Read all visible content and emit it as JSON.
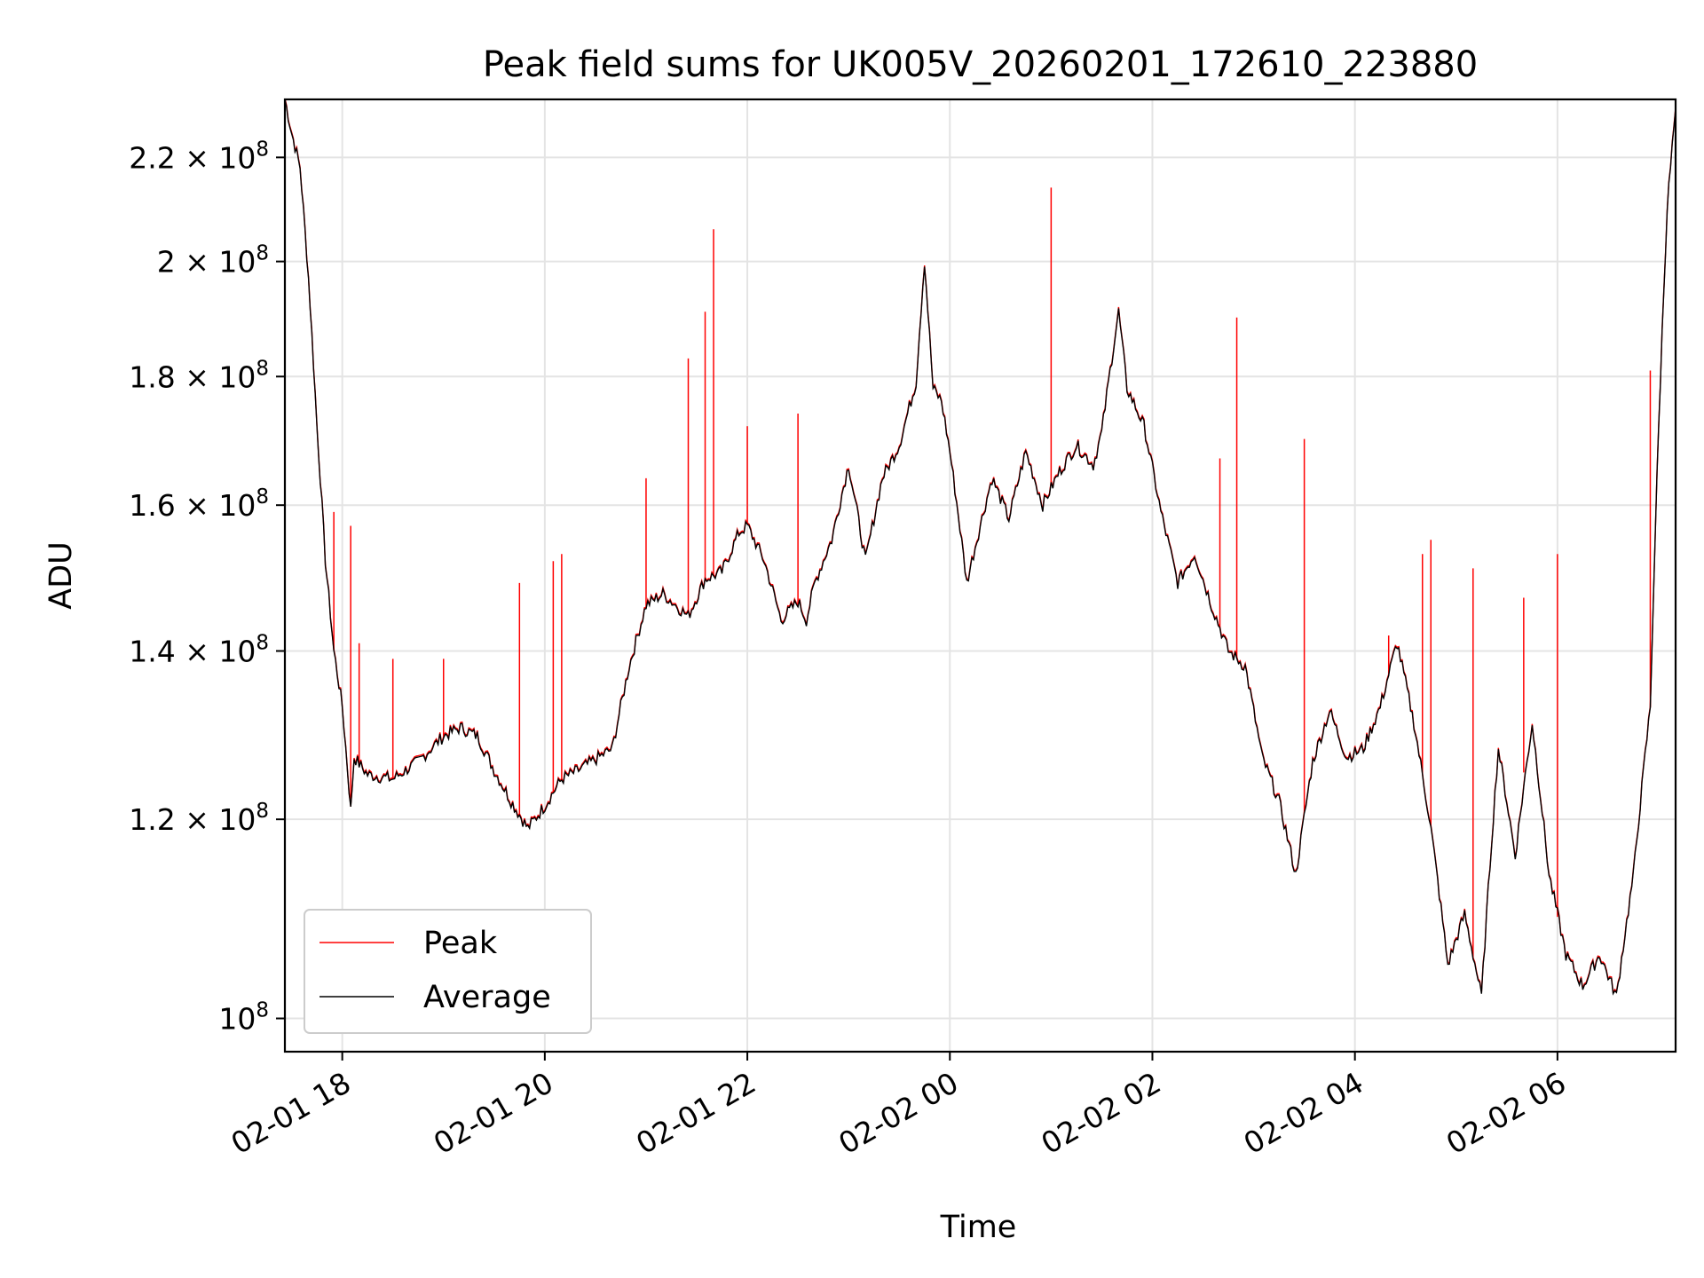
{
  "chart_data": {
    "type": "line",
    "title": "Peak field sums for UK005V_20260201_172610_223880",
    "xlabel": "Time",
    "ylabel": "ADU",
    "y_scale": "log",
    "grid": true,
    "legend_position": "lower-left",
    "xlim": [
      "2026-02-01 17:26",
      "2026-02-02 07:10"
    ],
    "ylim": [
      97000000,
      232000000
    ],
    "x_ticks": [
      "02-01 18",
      "02-01 20",
      "02-01 22",
      "02-02 00",
      "02-02 02",
      "02-02 04",
      "02-02 06"
    ],
    "y_ticks": [
      {
        "value": 100000000,
        "base": "10",
        "exp": "8",
        "mant": ""
      },
      {
        "value": 120000000,
        "base": "10",
        "exp": "8",
        "mant": "1.2"
      },
      {
        "value": 140000000,
        "base": "10",
        "exp": "8",
        "mant": "1.4"
      },
      {
        "value": 160000000,
        "base": "10",
        "exp": "8",
        "mant": "1.6"
      },
      {
        "value": 180000000,
        "base": "10",
        "exp": "8",
        "mant": "1.8"
      },
      {
        "value": 200000000,
        "base": "10",
        "exp": "8",
        "mant": "2"
      },
      {
        "value": 220000000,
        "base": "10",
        "exp": "8",
        "mant": "2.2"
      }
    ],
    "series": [
      {
        "name": "Peak",
        "color": "#ff0000"
      },
      {
        "name": "Average",
        "color": "#000000"
      }
    ],
    "average": [
      [
        "2026-02-01 17:26",
        232000000
      ],
      [
        "2026-02-01 17:30",
        225000000
      ],
      [
        "2026-02-01 17:35",
        218000000
      ],
      [
        "2026-02-01 17:40",
        197000000
      ],
      [
        "2026-02-01 17:45",
        172000000
      ],
      [
        "2026-02-01 17:50",
        152000000
      ],
      [
        "2026-02-01 17:55",
        140000000
      ],
      [
        "2026-02-01 18:00",
        133000000
      ],
      [
        "2026-02-01 18:05",
        121000000
      ],
      [
        "2026-02-01 18:07",
        127000000
      ],
      [
        "2026-02-01 18:15",
        125000000
      ],
      [
        "2026-02-01 18:30",
        124500000
      ],
      [
        "2026-02-01 18:45",
        126500000
      ],
      [
        "2026-02-01 19:00",
        129500000
      ],
      [
        "2026-02-01 19:10",
        130500000
      ],
      [
        "2026-02-01 19:20",
        129500000
      ],
      [
        "2026-02-01 19:30",
        125500000
      ],
      [
        "2026-02-01 19:40",
        122000000
      ],
      [
        "2026-02-01 19:50",
        119000000
      ],
      [
        "2026-02-01 20:00",
        121500000
      ],
      [
        "2026-02-01 20:10",
        124500000
      ],
      [
        "2026-02-01 20:20",
        125500000
      ],
      [
        "2026-02-01 20:40",
        128000000
      ],
      [
        "2026-02-01 20:50",
        138000000
      ],
      [
        "2026-02-01 21:00",
        146000000
      ],
      [
        "2026-02-01 21:10",
        147500000
      ],
      [
        "2026-02-01 21:25",
        144500000
      ],
      [
        "2026-02-01 21:35",
        149500000
      ],
      [
        "2026-02-01 21:45",
        150500000
      ],
      [
        "2026-02-01 21:55",
        156000000
      ],
      [
        "2026-02-01 22:00",
        157000000
      ],
      [
        "2026-02-01 22:10",
        152000000
      ],
      [
        "2026-02-01 22:20",
        144000000
      ],
      [
        "2026-02-01 22:30",
        146500000
      ],
      [
        "2026-02-01 22:35",
        144000000
      ],
      [
        "2026-02-01 22:40",
        149000000
      ],
      [
        "2026-02-01 22:50",
        155000000
      ],
      [
        "2026-02-01 23:00",
        166000000
      ],
      [
        "2026-02-01 23:10",
        152000000
      ],
      [
        "2026-02-01 23:20",
        164000000
      ],
      [
        "2026-02-01 23:30",
        169000000
      ],
      [
        "2026-02-01 23:40",
        179000000
      ],
      [
        "2026-02-01 23:45",
        200000000
      ],
      [
        "2026-02-01 23:50",
        178000000
      ],
      [
        "2026-02-01 23:55",
        176000000
      ],
      [
        "2026-02-02 00:00",
        168000000
      ],
      [
        "2026-02-02 00:10",
        149000000
      ],
      [
        "2026-02-02 00:20",
        159000000
      ],
      [
        "2026-02-02 00:25",
        164000000
      ],
      [
        "2026-02-02 00:35",
        158000000
      ],
      [
        "2026-02-02 00:45",
        168000000
      ],
      [
        "2026-02-02 00:55",
        160000000
      ],
      [
        "2026-02-02 01:05",
        165000000
      ],
      [
        "2026-02-02 01:15",
        169000000
      ],
      [
        "2026-02-02 01:25",
        166000000
      ],
      [
        "2026-02-02 01:30",
        171000000
      ],
      [
        "2026-02-02 01:40",
        191000000
      ],
      [
        "2026-02-02 01:45",
        178000000
      ],
      [
        "2026-02-02 01:55",
        172000000
      ],
      [
        "2026-02-02 02:05",
        159000000
      ],
      [
        "2026-02-02 02:15",
        149000000
      ],
      [
        "2026-02-02 02:25",
        153000000
      ],
      [
        "2026-02-02 02:35",
        146000000
      ],
      [
        "2026-02-02 02:45",
        140000000
      ],
      [
        "2026-02-02 02:55",
        138000000
      ],
      [
        "2026-02-02 03:05",
        127000000
      ],
      [
        "2026-02-02 03:15",
        122000000
      ],
      [
        "2026-02-02 03:25",
        114000000
      ],
      [
        "2026-02-02 03:35",
        126500000
      ],
      [
        "2026-02-02 03:45",
        132500000
      ],
      [
        "2026-02-02 03:55",
        127000000
      ],
      [
        "2026-02-02 04:05",
        128000000
      ],
      [
        "2026-02-02 04:15",
        133000000
      ],
      [
        "2026-02-02 04:25",
        141000000
      ],
      [
        "2026-02-02 04:35",
        131000000
      ],
      [
        "2026-02-02 04:45",
        119000000
      ],
      [
        "2026-02-02 04:55",
        105000000
      ],
      [
        "2026-02-02 05:05",
        110000000
      ],
      [
        "2026-02-02 05:15",
        102000000
      ],
      [
        "2026-02-02 05:25",
        128000000
      ],
      [
        "2026-02-02 05:35",
        116000000
      ],
      [
        "2026-02-02 05:45",
        131000000
      ],
      [
        "2026-02-02 05:55",
        114000000
      ],
      [
        "2026-02-02 06:05",
        106000000
      ],
      [
        "2026-02-02 06:15",
        103000000
      ],
      [
        "2026-02-02 06:25",
        106000000
      ],
      [
        "2026-02-02 06:35",
        102000000
      ],
      [
        "2026-02-02 06:45",
        114000000
      ],
      [
        "2026-02-02 06:55",
        133000000
      ],
      [
        "2026-02-02 07:00",
        172000000
      ],
      [
        "2026-02-02 07:05",
        210000000
      ],
      [
        "2026-02-02 07:10",
        230000000
      ]
    ],
    "peak_spikes": [
      [
        "2026-02-01 17:55",
        159000000
      ],
      [
        "2026-02-01 18:05",
        157000000
      ],
      [
        "2026-02-01 18:10",
        141000000
      ],
      [
        "2026-02-01 18:30",
        139000000
      ],
      [
        "2026-02-01 19:00",
        139000000
      ],
      [
        "2026-02-01 19:45",
        149000000
      ],
      [
        "2026-02-01 20:05",
        152000000
      ],
      [
        "2026-02-01 20:10",
        153000000
      ],
      [
        "2026-02-01 21:00",
        164000000
      ],
      [
        "2026-02-01 21:25",
        183000000
      ],
      [
        "2026-02-01 21:35",
        191000000
      ],
      [
        "2026-02-01 21:40",
        206000000
      ],
      [
        "2026-02-01 22:00",
        172000000
      ],
      [
        "2026-02-01 22:30",
        174000000
      ],
      [
        "2026-02-02 01:00",
        214000000
      ],
      [
        "2026-02-02 02:40",
        167000000
      ],
      [
        "2026-02-02 02:50",
        190000000
      ],
      [
        "2026-02-02 03:30",
        170000000
      ],
      [
        "2026-02-02 04:20",
        142000000
      ],
      [
        "2026-02-02 04:40",
        153000000
      ],
      [
        "2026-02-02 04:45",
        155000000
      ],
      [
        "2026-02-02 05:10",
        151000000
      ],
      [
        "2026-02-02 05:40",
        147000000
      ],
      [
        "2026-02-02 06:00",
        153000000
      ],
      [
        "2026-02-02 06:55",
        181000000
      ]
    ]
  }
}
